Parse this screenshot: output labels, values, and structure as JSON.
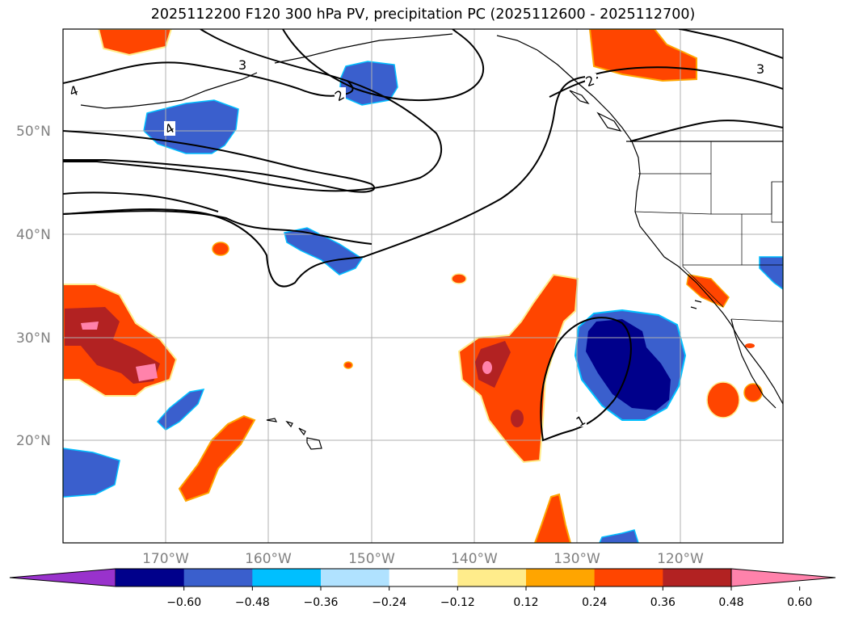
{
  "title": "2025112200 F120 300 hPa PV, precipitation PC (2025112600 - 2025112700)",
  "axes": {
    "lat_labels": [
      "50°N",
      "40°N",
      "30°N",
      "20°N"
    ],
    "lon_labels": [
      "170°W",
      "160°W",
      "150°W",
      "140°W",
      "130°W",
      "120°W"
    ]
  },
  "contour_labels": [
    "3",
    "4",
    "4",
    "2",
    "2",
    "3",
    "1"
  ],
  "colorbar": {
    "ticks": [
      "−0.60",
      "−0.48",
      "−0.36",
      "−0.24",
      "−0.12",
      "0.12",
      "0.24",
      "0.36",
      "0.48",
      "0.60"
    ],
    "colors": [
      "#9932cc",
      "#00008b",
      "#3a5fcd",
      "#00bfff",
      "#b0e2ff",
      "#ffffff",
      "#ffec8b",
      "#ffa500",
      "#ff4500",
      "#b22222",
      "#ff82ab"
    ]
  }
}
